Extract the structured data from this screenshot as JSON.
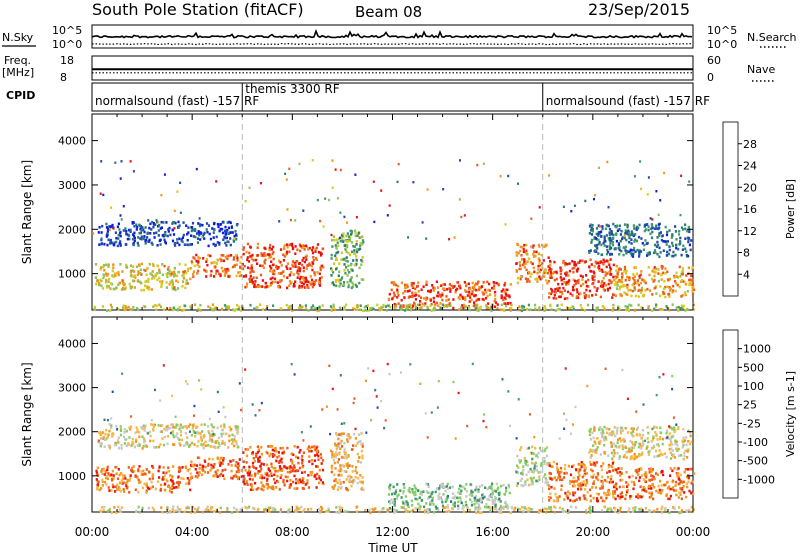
{
  "header": {
    "title": "South Pole Station (fitACF)",
    "beam": "Beam 08",
    "date": "23/Sep/2015"
  },
  "nsky_panel": {
    "left_label": "N.Sky",
    "left_ticks": [
      "10^5",
      "10^0"
    ],
    "right_ticks": [
      "10^5",
      "10^0"
    ],
    "right_label": "N.Search",
    "nsky_level": 0.45,
    "nsearch_level": 0.15
  },
  "freq_panel": {
    "left_label_1": "Freq.",
    "left_label_2": "[MHz]",
    "left_ticks": [
      "18",
      "8"
    ],
    "right_ticks": [
      "60",
      "0"
    ],
    "right_label": "Nave",
    "freq_mhz": 12.5,
    "nave": 18
  },
  "cpid": {
    "label": "CPID",
    "segments": [
      {
        "name": "normalsound (fast) -157 RF",
        "start_h": 0,
        "end_h": 6
      },
      {
        "name": "themis 3300 RF",
        "start_h": 6,
        "end_h": 18
      },
      {
        "name": "normalsound (fast) -157 RF",
        "start_h": 18,
        "end_h": 24
      }
    ]
  },
  "chart_data": [
    {
      "type": "heatmap",
      "quantity": "Power",
      "ylabel": "Slant Range [km]",
      "yticks": [
        "4000",
        "3000",
        "2000",
        "1000"
      ],
      "ylim": [
        180,
        4600
      ],
      "xlim": [
        0,
        24
      ],
      "colorbar": {
        "label": "Power [dB]",
        "ticks": [
          "28",
          "24",
          "20",
          "16",
          "12",
          "8",
          "4"
        ],
        "range": [
          0,
          32
        ],
        "colors": [
          "#0a1fd8",
          "#1f4bb0",
          "#2d7a74",
          "#3f9a6a",
          "#8cc35a",
          "#d9c820",
          "#f2961c",
          "#ef5a1c",
          "#e81212"
        ]
      },
      "echo_regions": [
        {
          "x": [
            0.1,
            3.9
          ],
          "y": [
            650,
            1250
          ],
          "level": 0.62
        },
        {
          "x": [
            3.9,
            6.0
          ],
          "y": [
            950,
            1450
          ],
          "level": 0.8
        },
        {
          "x": [
            6.0,
            9.2
          ],
          "y": [
            700,
            1700
          ],
          "level": 0.88
        },
        {
          "x": [
            9.5,
            10.8
          ],
          "y": [
            700,
            2000
          ],
          "level": 0.45
        },
        {
          "x": [
            11.8,
            16.7
          ],
          "y": [
            250,
            850
          ],
          "level": 0.85
        },
        {
          "x": [
            16.9,
            18.2
          ],
          "y": [
            800,
            1700
          ],
          "level": 0.78
        },
        {
          "x": [
            18.2,
            20.8
          ],
          "y": [
            450,
            1350
          ],
          "level": 0.88
        },
        {
          "x": [
            20.8,
            24.0
          ],
          "y": [
            500,
            1200
          ],
          "level": 0.72
        },
        {
          "x": [
            0.2,
            5.8
          ],
          "y": [
            1650,
            2200
          ],
          "level": 0.12
        },
        {
          "x": [
            19.8,
            23.9
          ],
          "y": [
            1400,
            2150
          ],
          "level": 0.25
        },
        {
          "x": [
            0.0,
            24.0
          ],
          "y": [
            190,
            330
          ],
          "level": 0.55
        }
      ]
    },
    {
      "type": "heatmap",
      "quantity": "Velocity",
      "ylabel": "Slant Range [km]",
      "xlabel": "Time UT",
      "xticks": [
        "00:00",
        "04:00",
        "08:00",
        "12:00",
        "16:00",
        "20:00",
        "00:00"
      ],
      "yticks": [
        "4000",
        "3000",
        "2000",
        "1000"
      ],
      "ylim": [
        180,
        4600
      ],
      "xlim": [
        0,
        24
      ],
      "colorbar": {
        "label": "Velocity [m s-1]",
        "ticks": [
          "1000",
          "500",
          "100",
          "25",
          "-25",
          "-100",
          "-500",
          "-1000"
        ],
        "range": [
          -1200,
          1200
        ],
        "colors": [
          "#e81212",
          "#ef5a1c",
          "#f2961c",
          "#f5b84a",
          "#c8c8c8",
          "#7fd060",
          "#3f9a6a",
          "#2d7a74",
          "#1f4bb0"
        ]
      },
      "echo_regions": [
        {
          "x": [
            0.1,
            3.9
          ],
          "y": [
            650,
            1250
          ],
          "level": 0.22
        },
        {
          "x": [
            3.9,
            6.0
          ],
          "y": [
            950,
            1450
          ],
          "level": 0.18
        },
        {
          "x": [
            6.0,
            9.2
          ],
          "y": [
            700,
            1700
          ],
          "level": 0.16
        },
        {
          "x": [
            9.5,
            10.8
          ],
          "y": [
            700,
            2000
          ],
          "level": 0.35
        },
        {
          "x": [
            11.8,
            16.7
          ],
          "y": [
            250,
            850
          ],
          "level": 0.62
        },
        {
          "x": [
            16.9,
            18.2
          ],
          "y": [
            800,
            1700
          ],
          "level": 0.55
        },
        {
          "x": [
            18.2,
            20.8
          ],
          "y": [
            450,
            1350
          ],
          "level": 0.25
        },
        {
          "x": [
            20.8,
            24.0
          ],
          "y": [
            500,
            1200
          ],
          "level": 0.2
        },
        {
          "x": [
            0.2,
            5.8
          ],
          "y": [
            1650,
            2200
          ],
          "level": 0.45
        },
        {
          "x": [
            19.8,
            23.9
          ],
          "y": [
            1400,
            2150
          ],
          "level": 0.45
        },
        {
          "x": [
            0.0,
            24.0
          ],
          "y": [
            190,
            330
          ],
          "level": 0.45
        }
      ]
    }
  ]
}
